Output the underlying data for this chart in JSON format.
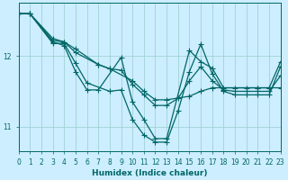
{
  "xlabel": "Humidex (Indice chaleur)",
  "bg_color": "#cceeff",
  "line_color": "#006666",
  "grid_color": "#99cccc",
  "xlim": [
    0,
    23
  ],
  "ylim": [
    10.65,
    12.75
  ],
  "yticks": [
    11,
    12
  ],
  "xticks": [
    0,
    1,
    2,
    3,
    4,
    5,
    6,
    7,
    8,
    9,
    10,
    11,
    12,
    13,
    14,
    15,
    16,
    17,
    18,
    19,
    20,
    21,
    22,
    23
  ],
  "lines": [
    {
      "x": [
        0,
        1,
        3,
        4,
        5,
        6,
        7,
        9,
        10,
        11,
        12,
        13,
        15,
        16,
        17,
        18,
        19,
        20,
        21,
        22,
        23
      ],
      "y": [
        12.6,
        12.6,
        12.2,
        12.15,
        11.78,
        11.52,
        11.52,
        11.98,
        11.35,
        11.1,
        10.83,
        10.83,
        12.08,
        11.92,
        11.83,
        11.55,
        11.55,
        11.55,
        11.55,
        11.55,
        11.92
      ]
    },
    {
      "x": [
        0,
        1,
        3,
        4,
        5,
        7,
        8,
        10,
        11,
        12,
        13,
        15,
        16,
        17,
        21,
        22,
        23
      ],
      "y": [
        12.6,
        12.6,
        12.25,
        12.2,
        12.1,
        11.88,
        11.82,
        11.65,
        11.5,
        11.38,
        11.38,
        11.43,
        11.5,
        11.55,
        11.55,
        11.55,
        11.55
      ]
    },
    {
      "x": [
        0,
        1,
        3,
        4,
        5,
        6,
        8,
        9,
        10,
        11,
        12,
        13,
        14,
        15,
        16,
        17,
        18,
        19,
        20,
        21,
        22,
        23
      ],
      "y": [
        12.6,
        12.6,
        12.18,
        12.18,
        11.9,
        11.62,
        11.5,
        11.52,
        11.1,
        10.88,
        10.78,
        10.78,
        11.22,
        11.78,
        12.17,
        11.75,
        11.5,
        11.45,
        11.45,
        11.45,
        11.45,
        11.85
      ]
    },
    {
      "x": [
        0,
        1,
        3,
        4,
        5,
        7,
        8,
        9,
        10,
        11,
        12,
        13,
        14,
        15,
        16,
        17,
        18,
        19,
        20,
        21,
        22,
        23
      ],
      "y": [
        12.6,
        12.6,
        12.22,
        12.2,
        12.05,
        11.88,
        11.82,
        11.8,
        11.6,
        11.45,
        11.3,
        11.3,
        11.4,
        11.65,
        11.85,
        11.65,
        11.52,
        11.5,
        11.5,
        11.5,
        11.5,
        11.72
      ]
    }
  ],
  "marker_size": 2.5,
  "line_width": 0.9
}
